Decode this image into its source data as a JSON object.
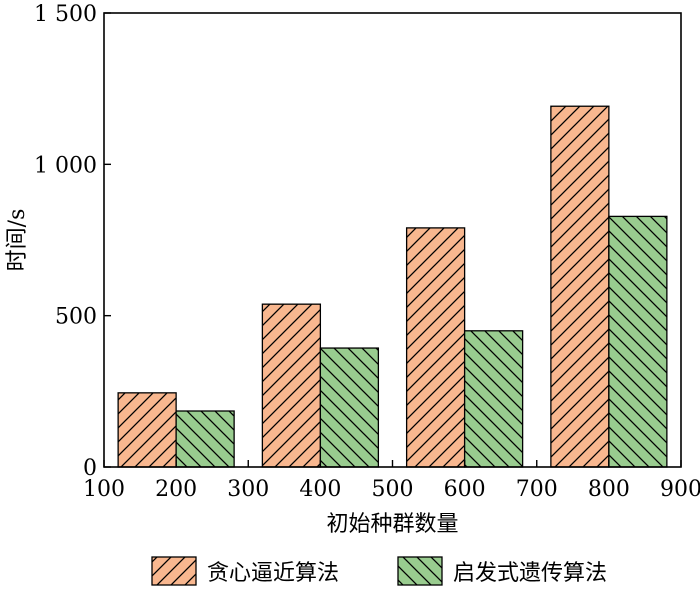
{
  "chart_data": {
    "type": "bar",
    "title": "",
    "xlabel": "初始种群数量",
    "ylabel": "时间/s",
    "categories": [
      200,
      400,
      600,
      800
    ],
    "x_ticks": [
      100,
      200,
      300,
      400,
      500,
      600,
      700,
      800,
      900
    ],
    "x_tick_labels": [
      "100",
      "200",
      "300",
      "400",
      "500",
      "600",
      "700",
      "800",
      "900"
    ],
    "xlim": [
      100,
      900
    ],
    "y_ticks": [
      0,
      500,
      1000,
      1500
    ],
    "y_tick_labels": [
      "0",
      "500",
      "1 000",
      "1 500"
    ],
    "ylim": [
      0,
      1500
    ],
    "grid": false,
    "legend_position": "bottom",
    "series": [
      {
        "name": "贪心逼近算法",
        "values": [
          245,
          538,
          790,
          1192
        ],
        "color": "#f8b78f",
        "hatch": "forward-diagonal"
      },
      {
        "name": "启发式遗传算法",
        "values": [
          185,
          393,
          450,
          828
        ],
        "color": "#99cc8f",
        "hatch": "backward-diagonal"
      }
    ]
  }
}
